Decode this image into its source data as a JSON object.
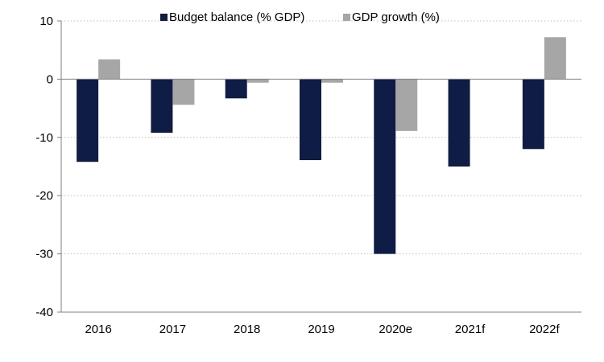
{
  "chart_data": {
    "type": "bar",
    "categories": [
      "2016",
      "2017",
      "2018",
      "2019",
      "2020e",
      "2021f",
      "2022f"
    ],
    "series": [
      {
        "name": "Budget balance (% GDP)",
        "color": "#0f1c45",
        "values": [
          -14.2,
          -9.2,
          -3.3,
          -13.9,
          -30.0,
          -15.0,
          -12.0
        ]
      },
      {
        "name": "GDP growth (%)",
        "color": "#a6a6a6",
        "values": [
          3.4,
          -4.4,
          -0.6,
          -0.6,
          -8.9,
          0,
          7.2
        ]
      }
    ],
    "ylim": [
      -40,
      10
    ],
    "yticks": [
      10,
      0,
      -10,
      -20,
      -30,
      -40
    ],
    "title": "",
    "xlabel": "",
    "ylabel": "",
    "grid": true,
    "legend_position": "top-center"
  }
}
